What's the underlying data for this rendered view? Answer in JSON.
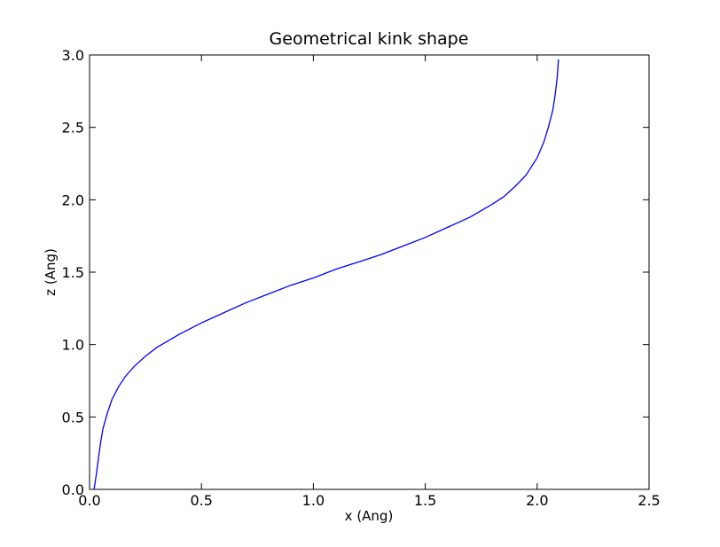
{
  "chart_data": {
    "type": "line",
    "title": "Geometrical kink shape",
    "xlabel": "x (Ang)",
    "ylabel": "z (Ang)",
    "xlim": [
      0.0,
      2.5
    ],
    "ylim": [
      0.0,
      3.0
    ],
    "xticks": [
      "0.0",
      "0.5",
      "1.0",
      "1.5",
      "2.0",
      "2.5"
    ],
    "yticks": [
      "0.0",
      "0.5",
      "1.0",
      "1.5",
      "2.0",
      "2.5",
      "3.0"
    ],
    "grid": false,
    "legend": "none",
    "series": [
      {
        "color": "#0000ff",
        "x": [
          0.02,
          0.03,
          0.04,
          0.05,
          0.06,
          0.08,
          0.1,
          0.13,
          0.16,
          0.2,
          0.25,
          0.3,
          0.4,
          0.5,
          0.6,
          0.7,
          0.8,
          0.9,
          1.0,
          1.1,
          1.2,
          1.3,
          1.4,
          1.5,
          1.6,
          1.7,
          1.8,
          1.85,
          1.9,
          1.95,
          2.0,
          2.03,
          2.05,
          2.07,
          2.08,
          2.09,
          2.095
        ],
        "y": [
          0.0,
          0.1,
          0.22,
          0.33,
          0.42,
          0.53,
          0.62,
          0.71,
          0.78,
          0.85,
          0.92,
          0.98,
          1.07,
          1.15,
          1.22,
          1.29,
          1.35,
          1.41,
          1.46,
          1.52,
          1.57,
          1.62,
          1.68,
          1.74,
          1.81,
          1.88,
          1.97,
          2.02,
          2.09,
          2.17,
          2.29,
          2.4,
          2.5,
          2.62,
          2.72,
          2.85,
          2.97
        ]
      }
    ]
  }
}
